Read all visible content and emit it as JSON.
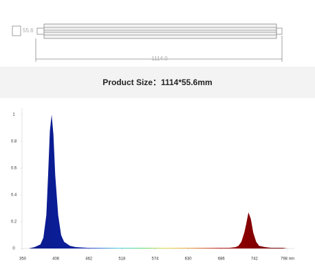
{
  "drawing": {
    "width_label": "55.6",
    "length_label": "1114.0"
  },
  "banner": {
    "text": "Product Size：1114*55.6mm"
  },
  "chart_data": {
    "type": "area",
    "x": [
      350,
      360,
      370,
      380,
      385,
      390,
      393,
      396,
      399,
      402,
      405,
      410,
      415,
      420,
      430,
      440,
      460,
      480,
      500,
      520,
      540,
      560,
      580,
      600,
      620,
      640,
      660,
      680,
      690,
      700,
      710,
      715,
      720,
      725,
      728,
      732,
      736,
      740,
      745,
      750,
      760,
      770,
      780,
      790,
      798
    ],
    "values": [
      0,
      0,
      0.01,
      0.03,
      0.08,
      0.25,
      0.55,
      0.88,
      1,
      0.85,
      0.55,
      0.25,
      0.1,
      0.05,
      0.02,
      0.01,
      0.005,
      0.005,
      0.005,
      0.005,
      0.005,
      0.005,
      0.005,
      0.005,
      0.005,
      0.005,
      0.005,
      0.005,
      0.005,
      0.005,
      0.01,
      0.02,
      0.05,
      0.12,
      0.18,
      0.27,
      0.22,
      0.12,
      0.05,
      0.02,
      0.01,
      0.005,
      0.005,
      0.005,
      0
    ],
    "xlim": [
      350,
      798
    ],
    "xticks": [
      350,
      406,
      462,
      518,
      574,
      630,
      686,
      742,
      {
        "value": 798,
        "label": "798 nm"
      }
    ],
    "ylim": [
      0,
      1
    ],
    "yticks": [
      0,
      0.2,
      0.4,
      0.6,
      0.8,
      1
    ]
  }
}
